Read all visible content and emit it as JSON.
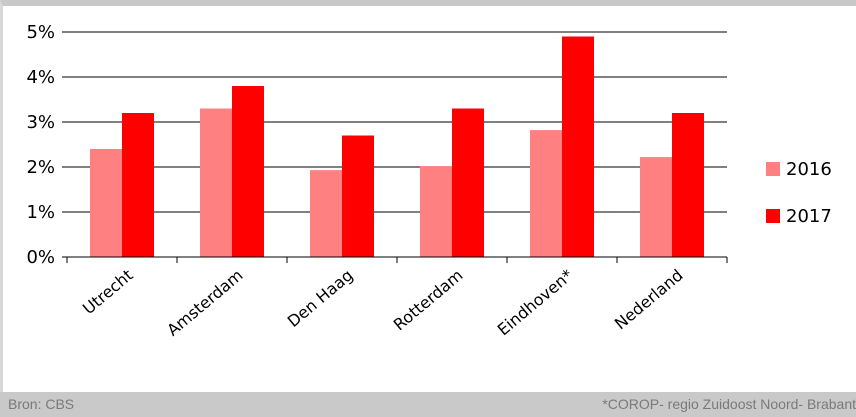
{
  "chart_data": {
    "type": "bar",
    "categories": [
      "Utrecht",
      "Amsterdam",
      "Den Haag",
      "Rotterdam",
      "Eindhoven*",
      "Nederland"
    ],
    "series": [
      {
        "name": "2016",
        "values": [
          2.4,
          3.3,
          1.93,
          2.02,
          2.82,
          2.22
        ],
        "color": "#ff8080"
      },
      {
        "name": "2017",
        "values": [
          3.2,
          3.8,
          2.7,
          3.3,
          4.9,
          3.2
        ],
        "color": "#ff0000"
      }
    ],
    "yticks": [
      "0%",
      "1%",
      "2%",
      "3%",
      "4%",
      "5%"
    ],
    "ylim": [
      0,
      5
    ],
    "grid": true,
    "legend": "right",
    "gridColor": "#000000"
  },
  "footer": {
    "source": "Bron: CBS",
    "note": "*COROP- regio Zuidoost Noord- Brabant"
  }
}
